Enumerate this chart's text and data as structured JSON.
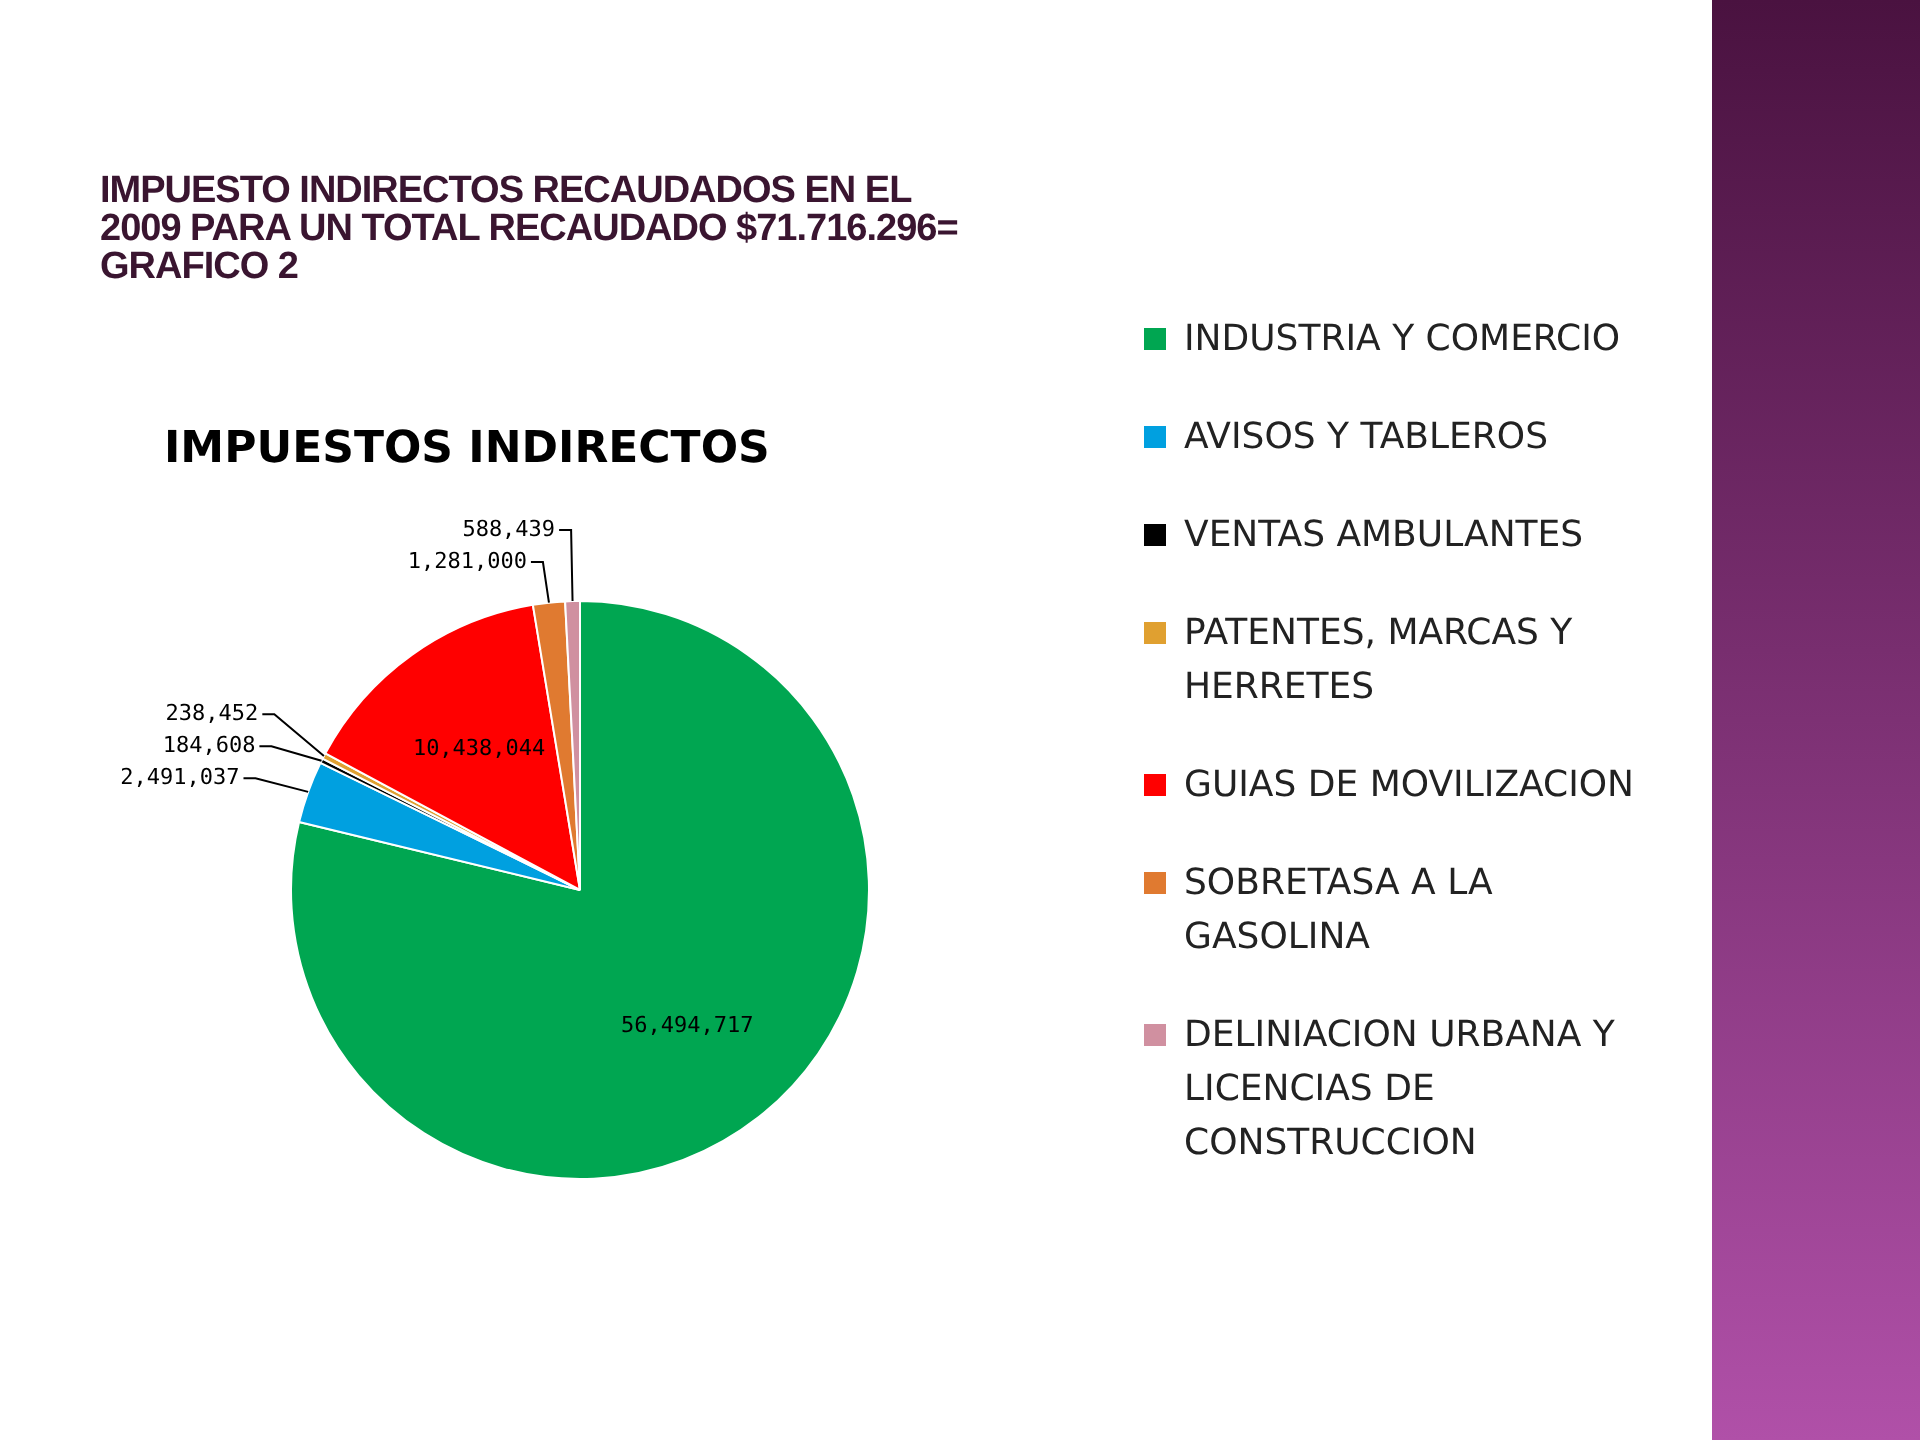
{
  "chart_data": {
    "type": "pie",
    "title": "IMPUESTO INDIRECTOS RECAUDADOS EN EL 2009 PARA UN TOTAL RECAUDADO $71.716.296= GRAFICO 2",
    "subtitle": "IMPUESTOS INDIRECTOS",
    "categories": [
      "INDUSTRIA Y COMERCIO",
      "AVISOS Y TABLEROS",
      "VENTAS AMBULANTES",
      "PATENTES, MARCAS Y HERRETES",
      "GUIAS DE MOVILIZACION",
      "SOBRETASA A LA GASOLINA",
      "DELINIACION URBANA Y LICENCIAS DE CONSTRUCCION"
    ],
    "values": [
      56494717,
      2491037,
      184608,
      238452,
      10438044,
      1281000,
      588439
    ],
    "colors": [
      "#00a651",
      "#00a0e0",
      "#000000",
      "#e0a030",
      "#ff0000",
      "#e07a30",
      "#d090a0"
    ],
    "value_labels": [
      "56,494,717",
      "2,491,037",
      "184,608",
      "238,452",
      "10,438,044",
      "1,281,000",
      "588,439"
    ],
    "legend": "right"
  }
}
